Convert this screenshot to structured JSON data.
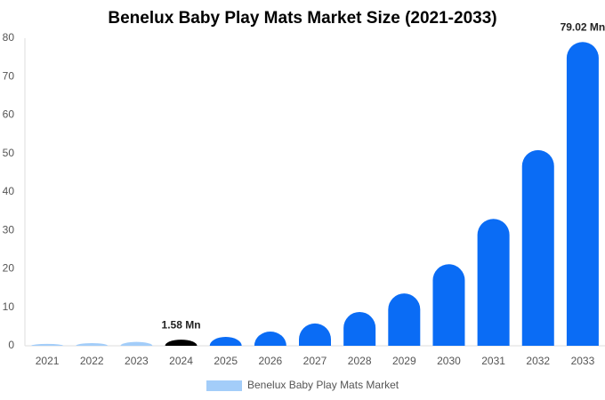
{
  "chart_data": {
    "type": "bar",
    "title": "Benelux Baby Play Mats Market Size (2021-2033)",
    "categories": [
      "2021",
      "2022",
      "2023",
      "2024",
      "2025",
      "2026",
      "2027",
      "2028",
      "2029",
      "2030",
      "2031",
      "2032",
      "2033"
    ],
    "series": [
      {
        "name": "Benelux Baby Play Mats Market",
        "color": "#a3cdf9",
        "values": [
          0.5,
          0.7,
          1.0,
          1.58,
          2.3,
          3.7,
          5.8,
          8.8,
          13.6,
          21.2,
          33.0,
          50.9,
          79.02
        ],
        "value_labels": [
          null,
          null,
          null,
          "1.58 Mn",
          null,
          null,
          null,
          null,
          null,
          null,
          null,
          null,
          "79.02 Mn"
        ],
        "bar_colors": [
          "#a3cdf9",
          "#a3cdf9",
          "#a3cdf9",
          "#000000",
          "#0a6cf5",
          "#0a6cf5",
          "#0a6cf5",
          "#0a6cf5",
          "#0a6cf5",
          "#0a6cf5",
          "#0a6cf5",
          "#0a6cf5",
          "#0a6cf5"
        ]
      }
    ],
    "ylim": [
      0,
      80
    ],
    "yticks": [
      0,
      10,
      20,
      30,
      40,
      50,
      60,
      70,
      80
    ],
    "grid": false
  }
}
